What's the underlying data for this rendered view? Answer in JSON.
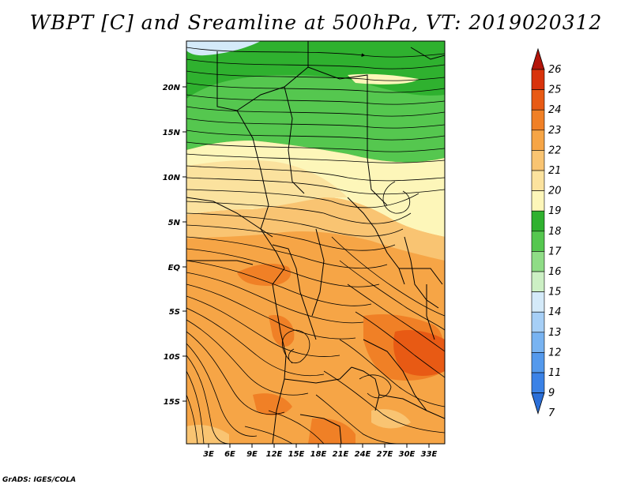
{
  "title": "WBPT [C] and Sreamline at 500hPa, VT: 2019020312",
  "credit": "GrADS: IGES/COLA",
  "map": {
    "lat_ticks": [
      "20N",
      "15N",
      "10N",
      "5N",
      "EQ",
      "5S",
      "10S",
      "15S"
    ],
    "lon_ticks": [
      "3E",
      "6E",
      "9E",
      "12E",
      "15E",
      "18E",
      "21E",
      "24E",
      "27E",
      "30E",
      "33E"
    ]
  },
  "colorbar": {
    "labels": [
      "7",
      "9",
      "11",
      "12",
      "13",
      "14",
      "15",
      "16",
      "17",
      "18",
      "19",
      "20",
      "21",
      "22",
      "23",
      "24",
      "25",
      "26"
    ],
    "colors": [
      "#2b6fd8",
      "#3b82e6",
      "#5499ec",
      "#78b3f1",
      "#a6cff6",
      "#d4eaf9",
      "#ccefc4",
      "#8fdc86",
      "#55c74f",
      "#2fb12f",
      "#fdf6b9",
      "#fbe29e",
      "#f9c472",
      "#f6a546",
      "#f08026",
      "#e85a14",
      "#d8330c",
      "#b3150a"
    ]
  }
}
